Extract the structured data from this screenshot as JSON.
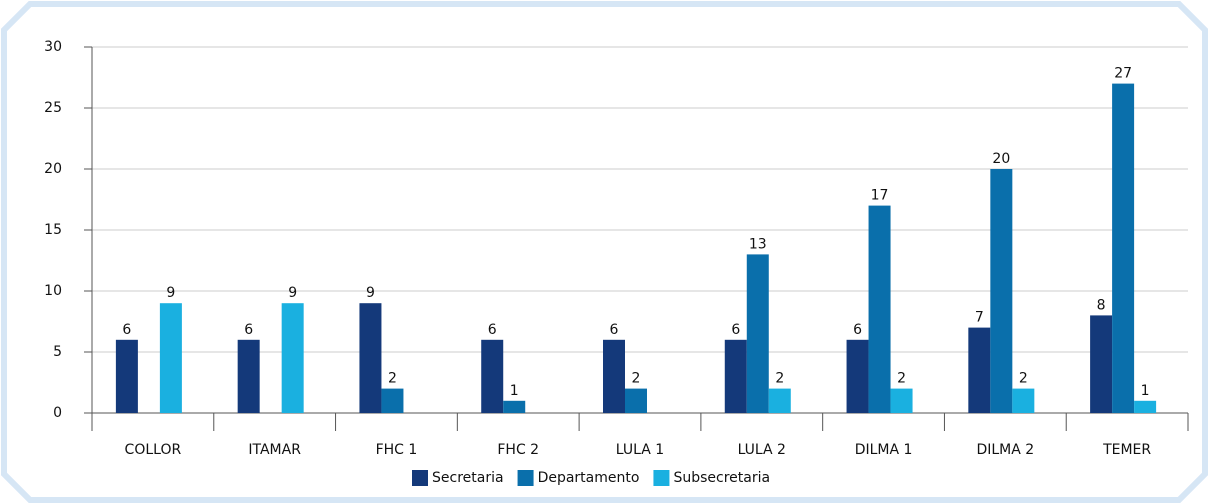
{
  "chart_data": {
    "type": "bar",
    "categories": [
      "COLLOR",
      "ITAMAR",
      "FHC 1",
      "FHC 2",
      "LULA 1",
      "LULA 2",
      "DILMA 1",
      "DILMA 2",
      "TEMER"
    ],
    "series": [
      {
        "name": "Secretaria",
        "color": "#14397a",
        "values": [
          6,
          6,
          9,
          6,
          6,
          6,
          6,
          7,
          8
        ]
      },
      {
        "name": "Departamento",
        "color": "#0a6fab",
        "values": [
          null,
          null,
          2,
          1,
          2,
          13,
          17,
          20,
          27
        ]
      },
      {
        "name": "Subsecretaria",
        "color": "#1ab0e0",
        "values": [
          9,
          9,
          null,
          null,
          null,
          2,
          2,
          2,
          1
        ]
      }
    ],
    "ylim": [
      0,
      30
    ],
    "yticks": [
      0,
      5,
      10,
      15,
      20,
      25,
      30
    ],
    "grid": true,
    "legend": "bottom"
  }
}
